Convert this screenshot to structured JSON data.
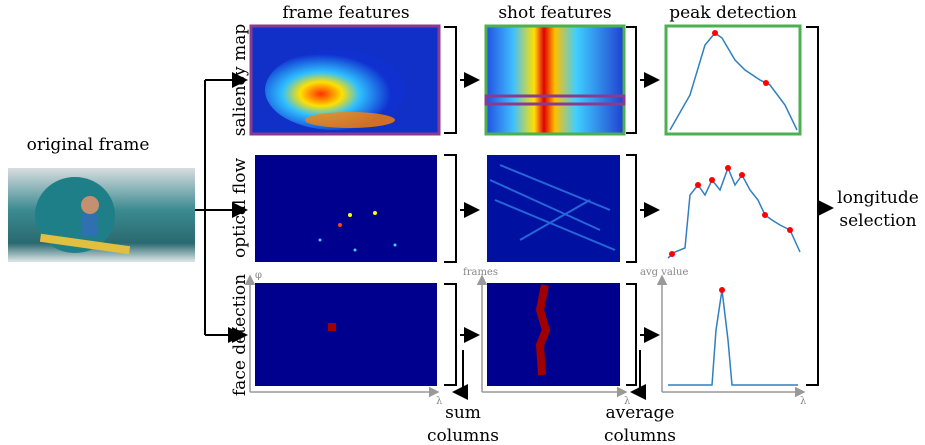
{
  "columns": [
    "frame features",
    "shot features",
    "peak detection"
  ],
  "rows": [
    "saliency map",
    "optical flow",
    "face detection"
  ],
  "input": "original frame",
  "output": [
    "longitude",
    "selection"
  ],
  "operations": {
    "sum": [
      "sum",
      "columns"
    ],
    "average": [
      "average",
      "columns"
    ]
  },
  "axes": {
    "frame_y": "φ",
    "frame_x": "λ",
    "shot_y": "frames",
    "shot_x": "λ",
    "peak_y": "avg value",
    "peak_x": "λ"
  }
}
